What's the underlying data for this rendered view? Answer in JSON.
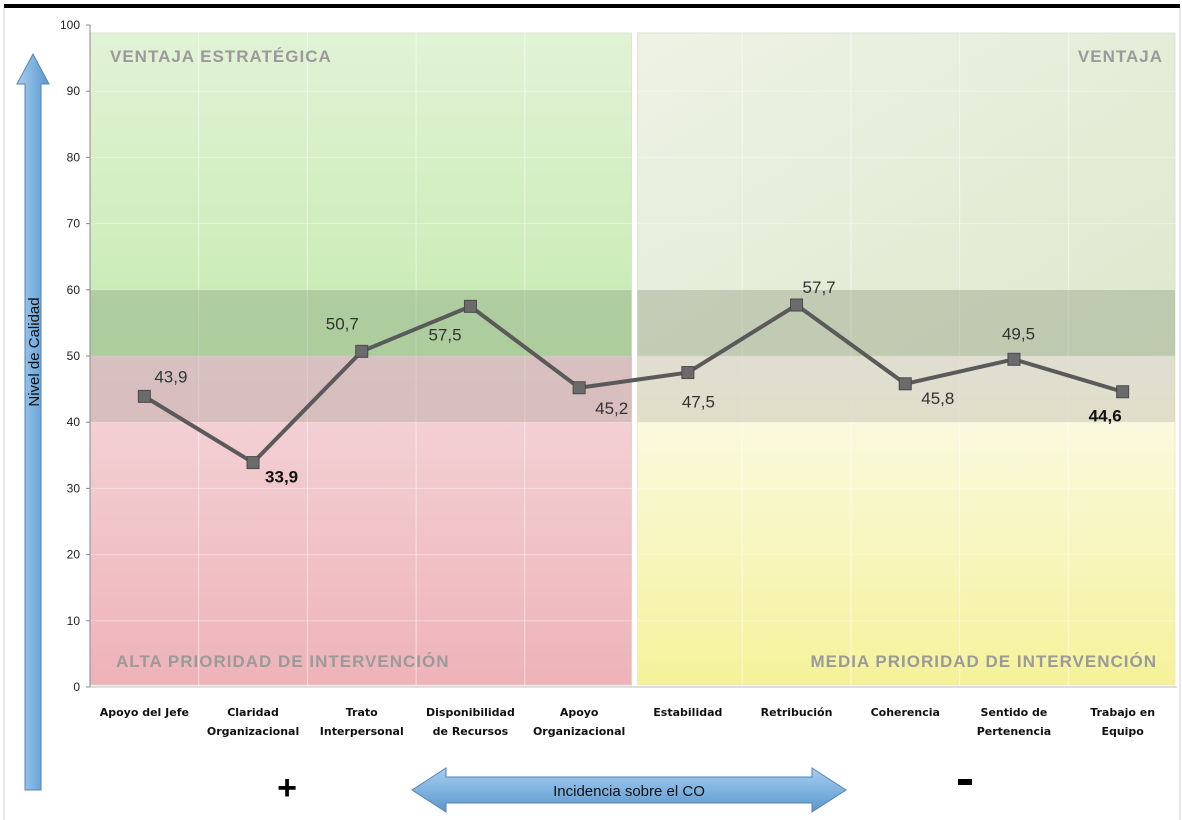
{
  "chart_data": {
    "type": "line",
    "ylabel": "Nivel de Calidad",
    "xlabel": "Incidencia sobre el CO",
    "ylim": [
      0,
      100
    ],
    "yticks": [
      0,
      10,
      20,
      30,
      40,
      50,
      60,
      70,
      80,
      90,
      100
    ],
    "grid": true,
    "categories": [
      [
        "Apoyo del Jefe"
      ],
      [
        "Claridad",
        "Organizacional"
      ],
      [
        "Trato",
        "Interpersonal"
      ],
      [
        "Disponibilidad",
        "de Recursos"
      ],
      [
        "Apoyo",
        "Organizacional"
      ],
      [
        "Estabilidad"
      ],
      [
        "Retribución"
      ],
      [
        "Coherencia"
      ],
      [
        "Sentido de",
        "Pertenencia"
      ],
      [
        "Trabajo en",
        "Equipo"
      ]
    ],
    "values": [
      43.9,
      33.9,
      50.7,
      57.5,
      45.2,
      47.5,
      57.7,
      45.8,
      49.5,
      44.6
    ],
    "value_labels": [
      "43,9",
      "33,9",
      "50,7",
      "57,5",
      "45,2",
      "47,5",
      "57,7",
      "45,8",
      "49,5",
      "44,6"
    ],
    "zones": {
      "top_left": "VENTAJA ESTRATÉGICA",
      "top_right": "VENTAJA",
      "bottom_left": "ALTA PRIORIDAD DE INTERVENCIÓN",
      "bottom_right": "MEDIA PRIORIDAD DE INTERVENCIÓN"
    },
    "zone_colors": {
      "top_left": "#cdeebc",
      "top_right": "#e2ead3",
      "bottom_left": "#efbcc1",
      "bottom_right": "#f4f2a5",
      "band_upper": "#9dae90",
      "band_lower": "#c9b6b0"
    },
    "line_color": "#5a5a5a",
    "marker_color": "#6b6b6b",
    "arrow_color": "#6fa8dc",
    "signs": {
      "left": "+",
      "right": "-"
    }
  }
}
